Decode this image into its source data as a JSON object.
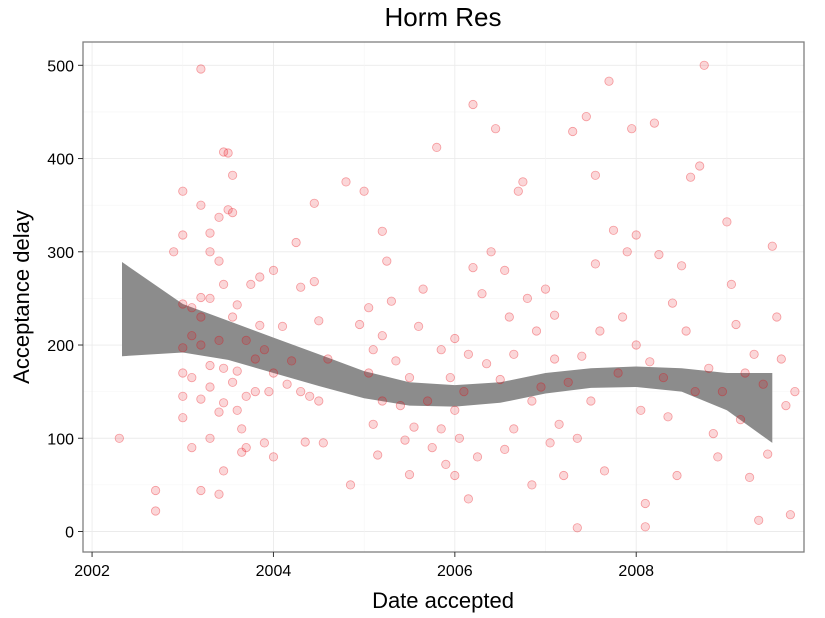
{
  "chart_data": {
    "type": "scatter",
    "title": "Horm Res",
    "xlabel": "Date accepted",
    "ylabel": "Acceptance delay",
    "xlim": [
      2001.9,
      2009.85
    ],
    "ylim": [
      -22,
      525
    ],
    "x_ticks": [
      2002,
      2004,
      2006,
      2008
    ],
    "x_tick_labels": [
      "2002",
      "2004",
      "2006",
      "2008"
    ],
    "y_ticks": [
      0,
      100,
      200,
      300,
      400,
      500
    ],
    "y_tick_labels": [
      "0",
      "100",
      "200",
      "300",
      "400",
      "500"
    ],
    "grid": true,
    "colors": {
      "points": "#e8000b",
      "band": "#8c8c8c",
      "panel_border": "#7f7f7f",
      "grid": "#ebebeb"
    },
    "smooth_band": {
      "x": [
        2002.33,
        2003.0,
        2003.5,
        2004.0,
        2004.5,
        2005.0,
        2005.5,
        2006.0,
        2006.5,
        2007.0,
        2007.5,
        2008.0,
        2008.5,
        2009.0,
        2009.5
      ],
      "upper": [
        289,
        244,
        226,
        208,
        190,
        172,
        160,
        157,
        160,
        170,
        175,
        177,
        175,
        170,
        170
      ],
      "lower": [
        188,
        192,
        184,
        170,
        156,
        143,
        135,
        134,
        138,
        148,
        154,
        155,
        150,
        130,
        95
      ]
    },
    "series": [
      {
        "values": [
          [
            2002.3,
            100
          ],
          [
            2002.7,
            44
          ],
          [
            2002.7,
            22
          ],
          [
            2002.9,
            300
          ],
          [
            2003.0,
            365
          ],
          [
            2003.0,
            318
          ],
          [
            2003.0,
            244
          ],
          [
            2003.0,
            197
          ],
          [
            2003.0,
            170
          ],
          [
            2003.0,
            145
          ],
          [
            2003.0,
            122
          ],
          [
            2003.1,
            240
          ],
          [
            2003.1,
            210
          ],
          [
            2003.1,
            165
          ],
          [
            2003.1,
            90
          ],
          [
            2003.2,
            496
          ],
          [
            2003.2,
            350
          ],
          [
            2003.2,
            251
          ],
          [
            2003.2,
            230
          ],
          [
            2003.2,
            200
          ],
          [
            2003.2,
            142
          ],
          [
            2003.2,
            44
          ],
          [
            2003.3,
            320
          ],
          [
            2003.3,
            300
          ],
          [
            2003.3,
            250
          ],
          [
            2003.3,
            178
          ],
          [
            2003.3,
            155
          ],
          [
            2003.3,
            100
          ],
          [
            2003.4,
            337
          ],
          [
            2003.4,
            290
          ],
          [
            2003.4,
            205
          ],
          [
            2003.4,
            128
          ],
          [
            2003.4,
            40
          ],
          [
            2003.45,
            407
          ],
          [
            2003.45,
            265
          ],
          [
            2003.45,
            175
          ],
          [
            2003.45,
            138
          ],
          [
            2003.45,
            65
          ],
          [
            2003.5,
            406
          ],
          [
            2003.5,
            345
          ],
          [
            2003.55,
            382
          ],
          [
            2003.55,
            342
          ],
          [
            2003.55,
            230
          ],
          [
            2003.55,
            160
          ],
          [
            2003.6,
            243
          ],
          [
            2003.6,
            172
          ],
          [
            2003.6,
            130
          ],
          [
            2003.65,
            110
          ],
          [
            2003.65,
            85
          ],
          [
            2003.7,
            205
          ],
          [
            2003.7,
            145
          ],
          [
            2003.7,
            90
          ],
          [
            2003.75,
            265
          ],
          [
            2003.8,
            185
          ],
          [
            2003.8,
            150
          ],
          [
            2003.85,
            273
          ],
          [
            2003.85,
            221
          ],
          [
            2003.9,
            195
          ],
          [
            2003.9,
            95
          ],
          [
            2003.95,
            150
          ],
          [
            2004.0,
            280
          ],
          [
            2004.0,
            170
          ],
          [
            2004.0,
            80
          ],
          [
            2004.1,
            220
          ],
          [
            2004.15,
            158
          ],
          [
            2004.2,
            183
          ],
          [
            2004.25,
            310
          ],
          [
            2004.3,
            262
          ],
          [
            2004.3,
            150
          ],
          [
            2004.35,
            96
          ],
          [
            2004.4,
            145
          ],
          [
            2004.45,
            352
          ],
          [
            2004.45,
            268
          ],
          [
            2004.5,
            226
          ],
          [
            2004.5,
            140
          ],
          [
            2004.55,
            95
          ],
          [
            2004.6,
            185
          ],
          [
            2004.8,
            375
          ],
          [
            2004.85,
            50
          ],
          [
            2004.95,
            222
          ],
          [
            2005.0,
            365
          ],
          [
            2005.05,
            240
          ],
          [
            2005.05,
            170
          ],
          [
            2005.1,
            195
          ],
          [
            2005.1,
            115
          ],
          [
            2005.15,
            82
          ],
          [
            2005.2,
            322
          ],
          [
            2005.2,
            210
          ],
          [
            2005.2,
            140
          ],
          [
            2005.25,
            290
          ],
          [
            2005.3,
            247
          ],
          [
            2005.35,
            183
          ],
          [
            2005.4,
            135
          ],
          [
            2005.45,
            98
          ],
          [
            2005.5,
            165
          ],
          [
            2005.5,
            61
          ],
          [
            2005.55,
            112
          ],
          [
            2005.6,
            220
          ],
          [
            2005.65,
            260
          ],
          [
            2005.7,
            140
          ],
          [
            2005.75,
            90
          ],
          [
            2005.8,
            412
          ],
          [
            2005.85,
            195
          ],
          [
            2005.85,
            110
          ],
          [
            2005.9,
            72
          ],
          [
            2005.95,
            165
          ],
          [
            2006.0,
            207
          ],
          [
            2006.0,
            130
          ],
          [
            2006.0,
            60
          ],
          [
            2006.05,
            100
          ],
          [
            2006.1,
            150
          ],
          [
            2006.15,
            190
          ],
          [
            2006.15,
            35
          ],
          [
            2006.2,
            283
          ],
          [
            2006.2,
            458
          ],
          [
            2006.25,
            80
          ],
          [
            2006.3,
            255
          ],
          [
            2006.35,
            180
          ],
          [
            2006.4,
            300
          ],
          [
            2006.45,
            432
          ],
          [
            2006.5,
            163
          ],
          [
            2006.55,
            88
          ],
          [
            2006.55,
            280
          ],
          [
            2006.6,
            230
          ],
          [
            2006.65,
            190
          ],
          [
            2006.65,
            110
          ],
          [
            2006.7,
            365
          ],
          [
            2006.75,
            375
          ],
          [
            2006.8,
            250
          ],
          [
            2006.85,
            140
          ],
          [
            2006.85,
            50
          ],
          [
            2006.9,
            215
          ],
          [
            2006.95,
            155
          ],
          [
            2007.0,
            260
          ],
          [
            2007.05,
            95
          ],
          [
            2007.1,
            232
          ],
          [
            2007.1,
            185
          ],
          [
            2007.15,
            115
          ],
          [
            2007.2,
            60
          ],
          [
            2007.25,
            160
          ],
          [
            2007.3,
            429
          ],
          [
            2007.35,
            4
          ],
          [
            2007.35,
            100
          ],
          [
            2007.4,
            188
          ],
          [
            2007.45,
            445
          ],
          [
            2007.5,
            140
          ],
          [
            2007.55,
            287
          ],
          [
            2007.55,
            382
          ],
          [
            2007.6,
            215
          ],
          [
            2007.65,
            65
          ],
          [
            2007.7,
            483
          ],
          [
            2007.75,
            323
          ],
          [
            2007.8,
            170
          ],
          [
            2007.85,
            230
          ],
          [
            2007.9,
            300
          ],
          [
            2007.95,
            432
          ],
          [
            2008.0,
            318
          ],
          [
            2008.0,
            200
          ],
          [
            2008.05,
            130
          ],
          [
            2008.1,
            30
          ],
          [
            2008.1,
            5
          ],
          [
            2008.15,
            182
          ],
          [
            2008.2,
            438
          ],
          [
            2008.25,
            297
          ],
          [
            2008.3,
            165
          ],
          [
            2008.35,
            123
          ],
          [
            2008.4,
            245
          ],
          [
            2008.45,
            60
          ],
          [
            2008.5,
            285
          ],
          [
            2008.55,
            215
          ],
          [
            2008.6,
            380
          ],
          [
            2008.65,
            150
          ],
          [
            2008.7,
            392
          ],
          [
            2008.75,
            500
          ],
          [
            2008.8,
            175
          ],
          [
            2008.85,
            105
          ],
          [
            2008.9,
            80
          ],
          [
            2008.95,
            150
          ],
          [
            2009.0,
            332
          ],
          [
            2009.05,
            265
          ],
          [
            2009.1,
            222
          ],
          [
            2009.15,
            120
          ],
          [
            2009.2,
            170
          ],
          [
            2009.25,
            58
          ],
          [
            2009.3,
            190
          ],
          [
            2009.35,
            12
          ],
          [
            2009.4,
            158
          ],
          [
            2009.45,
            83
          ],
          [
            2009.5,
            306
          ],
          [
            2009.55,
            230
          ],
          [
            2009.6,
            185
          ],
          [
            2009.65,
            135
          ],
          [
            2009.7,
            18
          ],
          [
            2009.75,
            150
          ]
        ]
      }
    ]
  }
}
